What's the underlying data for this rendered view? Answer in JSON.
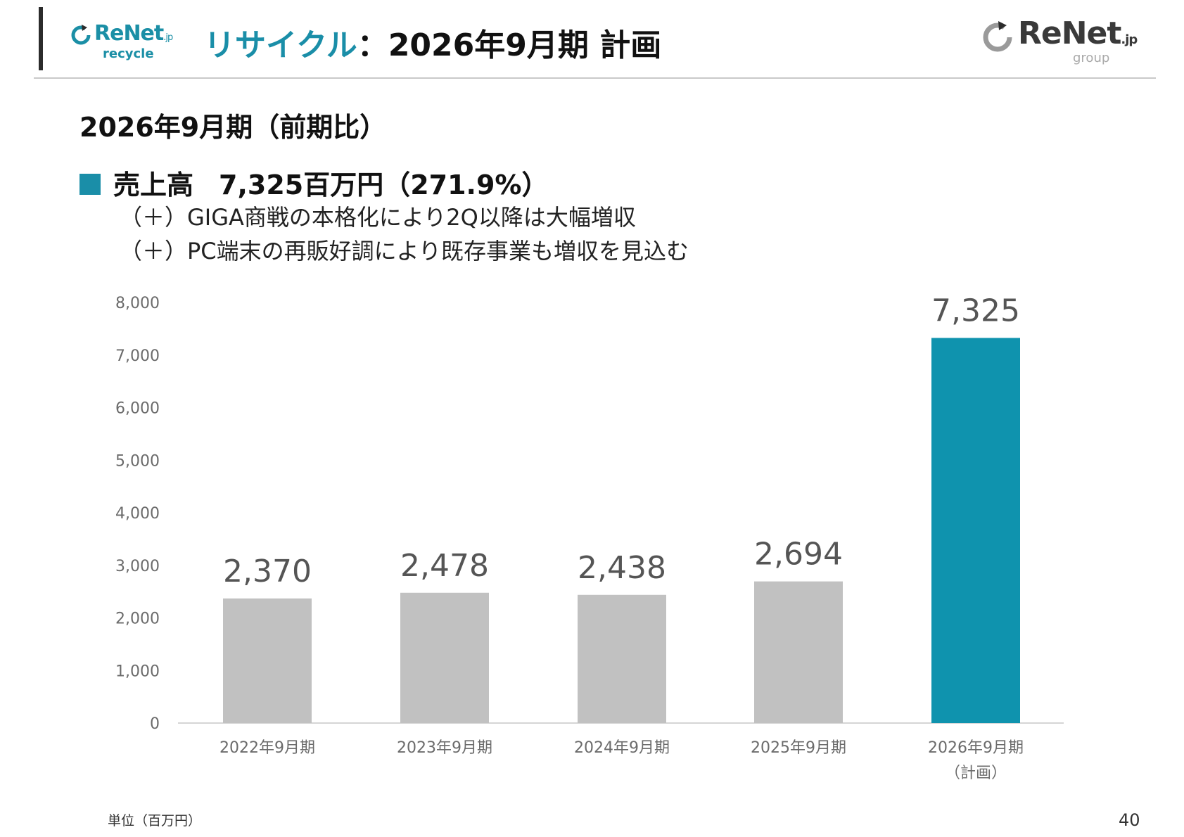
{
  "header": {
    "logo_left": {
      "name": "ReNet",
      "suffix": ".jp",
      "sub": "recycle"
    },
    "title_accent": "リサイクル",
    "title_colon": "：",
    "title_rest": "2026年9月期 計画",
    "logo_right": {
      "name": "ReNet",
      "suffix": ".jp",
      "sub": "group"
    }
  },
  "content": {
    "period_heading": "2026年9月期（前期比）",
    "kpi_label": "売上高",
    "kpi_value": "7,325百万円（271.9%）",
    "bullets": [
      "（＋）GIGA商戦の本格化により2Q以降は大幅増収",
      "（＋）PC端末の再販好調により既存事業も増収を見込む"
    ]
  },
  "colors": {
    "accent": "#0f93ae",
    "bar_gray": "#c1c1c1",
    "brand_teal": "#1a8ea8"
  },
  "chart_data": {
    "type": "bar",
    "categories": [
      [
        "2022年9月期"
      ],
      [
        "2023年9月期"
      ],
      [
        "2024年9月期"
      ],
      [
        "2025年9月期"
      ],
      [
        "2026年9月期",
        "（計画）"
      ]
    ],
    "values": [
      2370,
      2478,
      2438,
      2694,
      7325
    ],
    "data_labels": [
      "2,370",
      "2,478",
      "2,438",
      "2,694",
      "7,325"
    ],
    "highlight_index": 4,
    "y_ticks": [
      "0",
      "1,000",
      "2,000",
      "3,000",
      "4,000",
      "5,000",
      "6,000",
      "7,000",
      "8,000"
    ],
    "ylim": [
      0,
      8000
    ],
    "grid": false,
    "legend": "none"
  },
  "footer": {
    "unit_note": "単位（百万円）",
    "page_number": "40"
  }
}
